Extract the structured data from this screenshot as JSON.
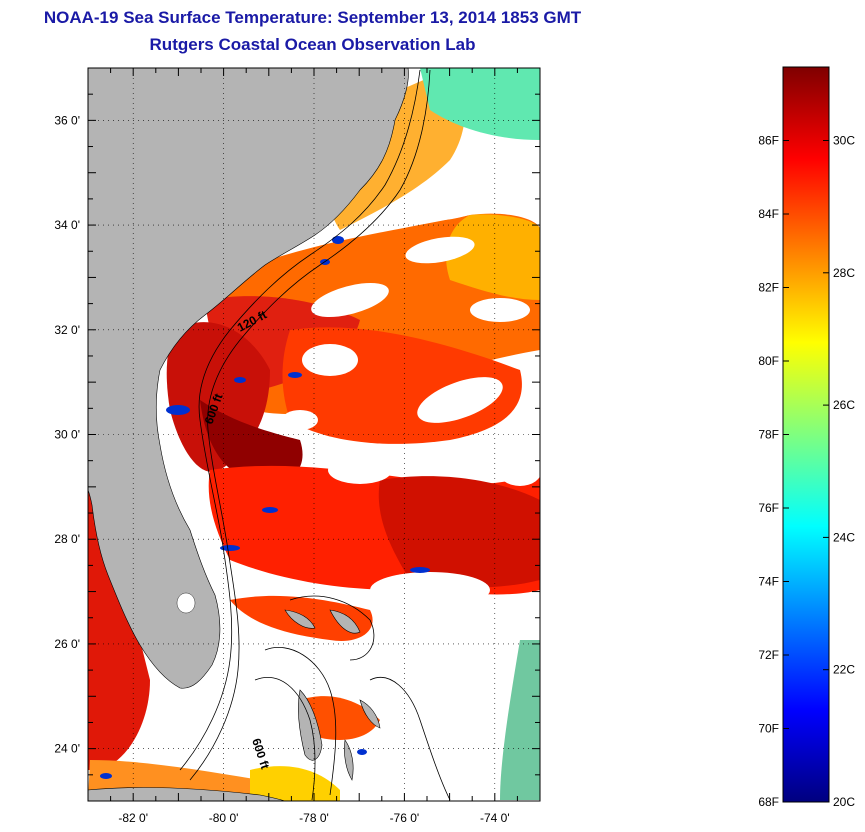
{
  "header": {
    "title": "NOAA-19 Sea Surface Temperature:  September 13, 2014 1853 GMT",
    "subtitle": "Rutgers Coastal Ocean Observation Lab"
  },
  "map": {
    "lat_labels": [
      "36 0'",
      "34 0'",
      "32 0'",
      "30 0'",
      "28 0'",
      "26 0'",
      "24 0'"
    ],
    "lon_labels": [
      "-82 0'",
      "-80 0'",
      "-78 0'",
      "-76 0'",
      "-74 0'"
    ],
    "lat_range": [
      23.0,
      37.0
    ],
    "lon_range": [
      -83.0,
      -73.0
    ],
    "contour_labels": [
      "120 ft",
      "600 ft",
      "600 ft"
    ],
    "colors": {
      "land": "#b4b4b4",
      "cloud": "#ffffff"
    }
  },
  "colorbar": {
    "fahrenheit_labels": [
      "86F",
      "84F",
      "82F",
      "80F",
      "78F",
      "76F",
      "74F",
      "72F",
      "70F",
      "68F"
    ],
    "celsius_labels": [
      "30C",
      "28C",
      "26C",
      "24C",
      "22C",
      "20C"
    ],
    "range_f": [
      68,
      88
    ],
    "colors": [
      "#00007f",
      "#0000ff",
      "#007fff",
      "#00ffff",
      "#7fff7f",
      "#ffff00",
      "#ff7f00",
      "#ff0000",
      "#7f0000"
    ]
  }
}
